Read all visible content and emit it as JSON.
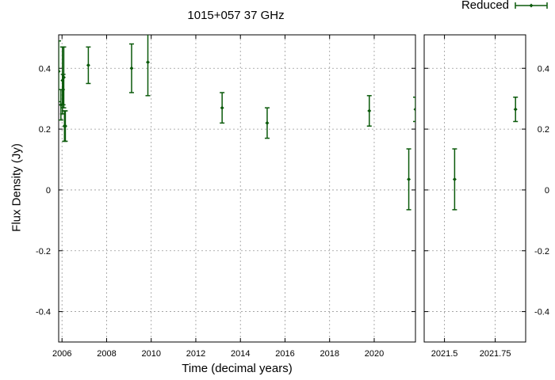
{
  "chart_data": {
    "type": "scatter",
    "title": "1015+057 37 GHz",
    "xlabel": "Time (decimal years)",
    "ylabel": "Flux Density (Jy)",
    "legend": {
      "label": "Reduced",
      "placement": "top-right"
    },
    "grid": true,
    "color": "#0b5a0b",
    "panels": [
      {
        "xlim": [
          2005.85,
          2021.85
        ],
        "ylim": [
          -0.5,
          0.51
        ],
        "xticks": [
          2006,
          2008,
          2010,
          2012,
          2014,
          2016,
          2018,
          2020
        ],
        "yticks": [
          -0.4,
          -0.2,
          0,
          0.2,
          0.4
        ],
        "ytick_labels": [
          "-0.4",
          "-0.2",
          "0",
          "0.2",
          "0.4"
        ]
      },
      {
        "xlim": [
          2021.4,
          2021.9
        ],
        "ylim": [
          -0.5,
          0.51
        ],
        "xticks": [
          2021.5,
          2021.75
        ],
        "yticks": [
          -0.4,
          -0.2,
          0,
          0.2,
          0.4
        ],
        "ytick_labels": [
          "-0.4",
          "-0.2",
          "0",
          "0.2",
          "0.4"
        ]
      }
    ],
    "series": [
      {
        "name": "Reduced",
        "points": [
          {
            "x": 2005.85,
            "y": 0.39,
            "err": 0.1
          },
          {
            "x": 2005.95,
            "y": 0.28,
            "err": 0.05
          },
          {
            "x": 2006.02,
            "y": 0.36,
            "err": 0.11
          },
          {
            "x": 2006.05,
            "y": 0.33,
            "err": 0.05
          },
          {
            "x": 2006.08,
            "y": 0.37,
            "err": 0.1
          },
          {
            "x": 2006.11,
            "y": 0.21,
            "err": 0.05
          },
          {
            "x": 2006.15,
            "y": 0.21,
            "err": 0.05
          },
          {
            "x": 2007.18,
            "y": 0.41,
            "err": 0.06
          },
          {
            "x": 2009.12,
            "y": 0.4,
            "err": 0.08
          },
          {
            "x": 2009.85,
            "y": 0.42,
            "err": 0.11
          },
          {
            "x": 2013.18,
            "y": 0.27,
            "err": 0.05
          },
          {
            "x": 2015.2,
            "y": 0.22,
            "err": 0.05
          },
          {
            "x": 2019.78,
            "y": 0.26,
            "err": 0.05
          },
          {
            "x": 2021.55,
            "y": 0.035,
            "err": 0.1
          },
          {
            "x": 2021.85,
            "y": 0.265,
            "err": 0.04
          }
        ]
      }
    ]
  }
}
